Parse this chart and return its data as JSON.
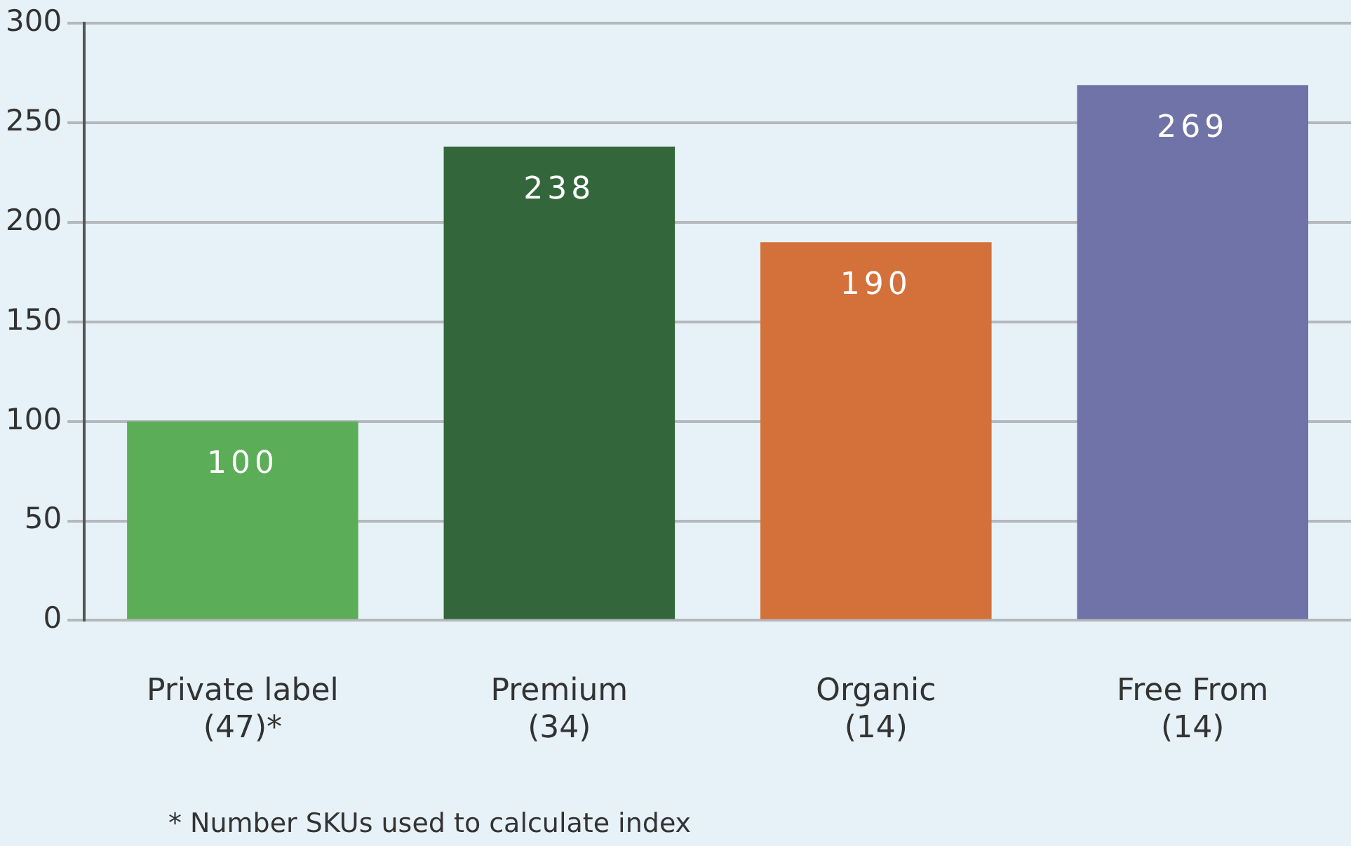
{
  "chart_data": {
    "type": "bar",
    "categories": [
      "Private label\n(47)*",
      "Premium\n(34)",
      "Organic\n(14)",
      "Free From\n(14)"
    ],
    "values": [
      100,
      238,
      190,
      269
    ],
    "colors": [
      "#5cad57",
      "#33673b",
      "#d4703a",
      "#7073a7"
    ],
    "ylim": [
      0,
      300
    ],
    "yticks": [
      0,
      50,
      100,
      150,
      200,
      250,
      300
    ],
    "grid": "y",
    "data_labels": true,
    "annotations": [
      "* Number SKUs used to calculate index"
    ]
  }
}
